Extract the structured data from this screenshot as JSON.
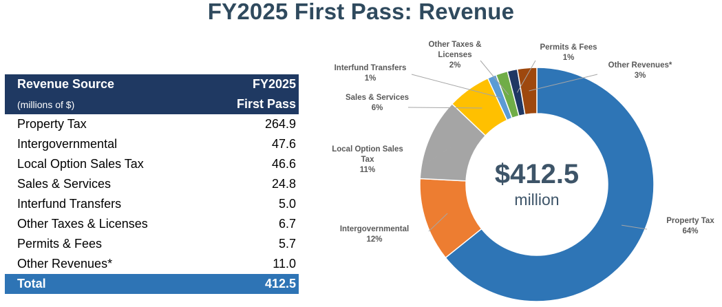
{
  "title": "FY2025 First Pass: Revenue",
  "table": {
    "header_left": "Revenue Source",
    "header_left_sub": "(millions of $)",
    "header_right": "FY2025",
    "header_right_sub": "First Pass",
    "rows": [
      {
        "source": "Property Tax",
        "value": "264.9"
      },
      {
        "source": "Intergovernmental",
        "value": "47.6"
      },
      {
        "source": "Local Option Sales Tax",
        "value": "46.6"
      },
      {
        "source": "Sales & Services",
        "value": "24.8"
      },
      {
        "source": "Interfund Transfers",
        "value": "5.0"
      },
      {
        "source": "Other Taxes & Licenses",
        "value": "6.7"
      },
      {
        "source": "Permits & Fees",
        "value": "5.7"
      },
      {
        "source": "Other Revenues*",
        "value": "11.0"
      }
    ],
    "total_label": "Total",
    "total_value": "412.5"
  },
  "chart_data": {
    "type": "pie",
    "variant": "donut",
    "center_value": "$412.5",
    "center_unit": "million",
    "slices": [
      {
        "name": "Property Tax",
        "value": 264.9,
        "percent": "64%",
        "color": "#2e75b6",
        "label_lines": [
          "Property Tax",
          "64%"
        ]
      },
      {
        "name": "Intergovernmental",
        "value": 47.6,
        "percent": "12%",
        "color": "#ed7d31",
        "label_lines": [
          "Intergovernmental",
          "12%"
        ]
      },
      {
        "name": "Local Option Sales Tax",
        "value": 46.6,
        "percent": "11%",
        "color": "#a5a5a5",
        "label_lines": [
          "Local Option Sales",
          "Tax",
          "11%"
        ]
      },
      {
        "name": "Sales & Services",
        "value": 24.8,
        "percent": "6%",
        "color": "#ffc000",
        "label_lines": [
          "Sales & Services",
          "6%"
        ]
      },
      {
        "name": "Interfund Transfers",
        "value": 5.0,
        "percent": "1%",
        "color": "#5b9bd5",
        "label_lines": [
          "Interfund Transfers",
          "1%"
        ]
      },
      {
        "name": "Other Taxes & Licenses",
        "value": 6.7,
        "percent": "2%",
        "color": "#70ad47",
        "label_lines": [
          "Other Taxes &",
          "Licenses",
          "2%"
        ]
      },
      {
        "name": "Permits & Fees",
        "value": 5.7,
        "percent": "1%",
        "color": "#1f3864",
        "label_lines": [
          "Permits & Fees",
          "1%"
        ]
      },
      {
        "name": "Other Revenues*",
        "value": 11.0,
        "percent": "3%",
        "color": "#9e480e",
        "label_lines": [
          "Other Revenues*",
          "3%"
        ]
      }
    ]
  }
}
